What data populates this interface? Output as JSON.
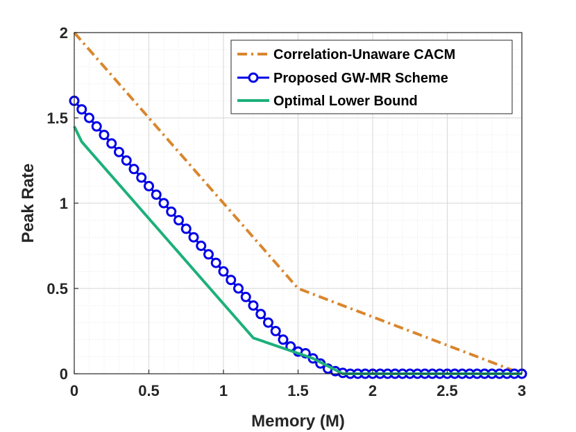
{
  "chart_data": {
    "type": "line",
    "xlabel": "Memory (M)",
    "ylabel": "Peak Rate",
    "xlim": [
      0,
      3
    ],
    "ylim": [
      0,
      2
    ],
    "xticks": [
      0,
      0.5,
      1,
      1.5,
      2,
      2.5,
      3
    ],
    "xtick_labels": [
      "0",
      "0.5",
      "1",
      "1.5",
      "2",
      "2.5",
      "3"
    ],
    "yticks": [
      0,
      0.5,
      1,
      1.5,
      2
    ],
    "ytick_labels": [
      "0",
      "0.5",
      "1",
      "1.5",
      "2"
    ],
    "grid": true,
    "legend_position": "top-right",
    "series": [
      {
        "name": "Correlation-Unaware CACM",
        "style": "dash-dot",
        "color": "#D9862E",
        "x": [
          0,
          1.5,
          3
        ],
        "y": [
          2,
          0.5,
          0
        ]
      },
      {
        "name": "Proposed GW-MR Scheme",
        "style": "solid-circles",
        "color": "#0000E6",
        "x": [
          0,
          0.05,
          0.1,
          0.15,
          0.2,
          0.25,
          0.3,
          0.35,
          0.4,
          0.45,
          0.5,
          0.55,
          0.6,
          0.65,
          0.7,
          0.75,
          0.8,
          0.85,
          0.9,
          0.95,
          1,
          1.05,
          1.1,
          1.15,
          1.2,
          1.25,
          1.3,
          1.35,
          1.4,
          1.45,
          1.5,
          1.55,
          1.6,
          1.65,
          1.7,
          1.75,
          1.8,
          1.85,
          1.9,
          1.95,
          2,
          2.05,
          2.1,
          2.15,
          2.2,
          2.25,
          2.3,
          2.35,
          2.4,
          2.45,
          2.5,
          2.55,
          2.6,
          2.65,
          2.7,
          2.75,
          2.8,
          2.85,
          2.9,
          2.95,
          3
        ],
        "y": [
          1.6,
          1.55,
          1.5,
          1.45,
          1.4,
          1.35,
          1.3,
          1.25,
          1.2,
          1.15,
          1.1,
          1.05,
          1.0,
          0.95,
          0.9,
          0.85,
          0.8,
          0.75,
          0.7,
          0.65,
          0.6,
          0.55,
          0.5,
          0.45,
          0.4,
          0.35,
          0.3,
          0.25,
          0.2,
          0.16,
          0.13,
          0.12,
          0.09,
          0.06,
          0.03,
          0.015,
          0.005,
          0,
          0,
          0,
          0,
          0,
          0,
          0,
          0,
          0,
          0,
          0,
          0,
          0,
          0,
          0,
          0,
          0,
          0,
          0,
          0,
          0,
          0,
          0,
          0
        ]
      },
      {
        "name": "Optimal Lower Bound",
        "style": "solid",
        "color": "#1DB07A",
        "x": [
          0,
          0.05,
          1.2,
          1.6,
          1.8,
          3
        ],
        "y": [
          1.45,
          1.36,
          0.21,
          0.09,
          0,
          0
        ]
      }
    ]
  }
}
